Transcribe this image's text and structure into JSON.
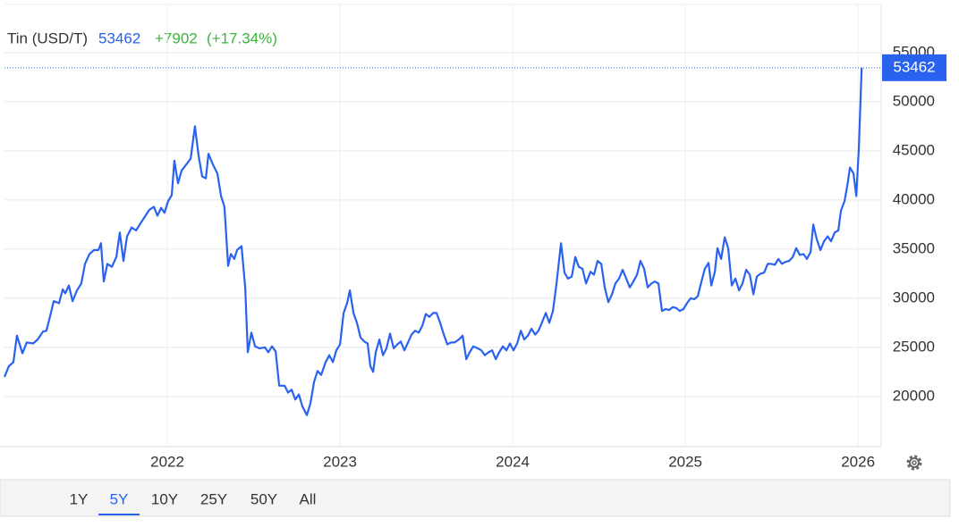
{
  "chart_data": {
    "type": "line",
    "title": "Tin (USD/T)",
    "change": "+7902",
    "change_pct": "(+17.34%)",
    "color": "#2a62f0",
    "x": [
      2021.057,
      2021.083,
      2021.109,
      2021.129,
      2021.161,
      2021.186,
      2021.223,
      2021.249,
      2021.28,
      2021.3,
      2021.326,
      2021.342,
      2021.373,
      2021.394,
      2021.409,
      2021.43,
      2021.451,
      2021.477,
      2021.502,
      2021.523,
      2021.549,
      2021.575,
      2021.601,
      2021.616,
      2021.632,
      2021.653,
      2021.679,
      2021.705,
      2021.725,
      2021.746,
      2021.767,
      2021.793,
      2021.819,
      2021.844,
      2021.87,
      2021.896,
      2021.922,
      2021.943,
      2021.964,
      2021.984,
      2022.005,
      2022.026,
      2022.041,
      2022.062,
      2022.083,
      2022.109,
      2022.135,
      2022.16,
      2022.181,
      2022.202,
      2022.223,
      2022.238,
      2022.264,
      2022.29,
      2022.311,
      2022.331,
      2022.352,
      2022.368,
      2022.388,
      2022.404,
      2022.43,
      2022.451,
      2022.466,
      2022.487,
      2022.508,
      2022.534,
      2022.565,
      2022.585,
      2022.606,
      2022.627,
      2022.648,
      2022.679,
      2022.699,
      2022.72,
      2022.741,
      2022.762,
      2022.782,
      2022.808,
      2022.829,
      2022.85,
      2022.87,
      2022.891,
      2022.917,
      2022.938,
      2022.959,
      2022.979,
      2023.0,
      2023.021,
      2023.041,
      2023.057,
      2023.078,
      2023.098,
      2023.119,
      2023.14,
      2023.16,
      2023.176,
      2023.192,
      2023.207,
      2023.228,
      2023.249,
      2023.269,
      2023.29,
      2023.311,
      2023.332,
      2023.352,
      2023.373,
      2023.394,
      2023.414,
      2023.435,
      2023.456,
      2023.477,
      2023.497,
      2023.518,
      2023.539,
      2023.559,
      2023.58,
      2023.601,
      2023.622,
      2023.642,
      2023.663,
      2023.689,
      2023.71,
      2023.731,
      2023.751,
      2023.772,
      2023.798,
      2023.819,
      2023.839,
      2023.86,
      2023.881,
      2023.902,
      2023.922,
      2023.943,
      2023.964,
      2023.984,
      2024.005,
      2024.026,
      2024.047,
      2024.067,
      2024.088,
      2024.109,
      2024.13,
      2024.15,
      2024.171,
      2024.192,
      2024.212,
      2024.233,
      2024.254,
      2024.28,
      2024.3,
      2024.321,
      2024.342,
      2024.363,
      2024.383,
      2024.404,
      2024.425,
      2024.451,
      2024.471,
      2024.492,
      2024.513,
      2024.533,
      2024.554,
      2024.575,
      2024.595,
      2024.616,
      2024.637,
      2024.658,
      2024.678,
      2024.699,
      2024.72,
      2024.74,
      2024.761,
      2024.782,
      2024.803,
      2024.823,
      2024.844,
      2024.865,
      2024.886,
      2024.906,
      2024.927,
      2024.948,
      2024.968,
      2024.989,
      2025.01,
      2025.031,
      2025.051,
      2025.072,
      2025.093,
      2025.113,
      2025.134,
      2025.15,
      2025.171,
      2025.186,
      2025.207,
      2025.228,
      2025.248,
      2025.269,
      2025.29,
      2025.311,
      2025.331,
      2025.352,
      2025.373,
      2025.394,
      2025.414,
      2025.435,
      2025.456,
      2025.477,
      2025.497,
      2025.518,
      2025.539,
      2025.559,
      2025.58,
      2025.601,
      2025.622,
      2025.642,
      2025.663,
      2025.684,
      2025.704,
      2025.725,
      2025.741,
      2025.761,
      2025.782,
      2025.803,
      2025.824,
      2025.844,
      2025.865,
      2025.886,
      2025.901,
      2025.922,
      2025.938,
      2025.953,
      2025.974,
      2025.99,
      2026.005,
      2026.021
    ],
    "values": [
      22000,
      23100,
      23500,
      26200,
      24400,
      25500,
      25400,
      25800,
      26600,
      26700,
      28500,
      29700,
      29500,
      30900,
      30500,
      31300,
      29700,
      30800,
      31500,
      33500,
      34500,
      34900,
      34900,
      35600,
      31700,
      33500,
      33200,
      34200,
      36700,
      33800,
      36300,
      37200,
      36900,
      37600,
      38300,
      39000,
      39300,
      38400,
      39200,
      38700,
      39900,
      40500,
      44000,
      41700,
      43000,
      43600,
      44200,
      47500,
      44500,
      42400,
      42200,
      44700,
      43600,
      42700,
      40400,
      39300,
      33300,
      34500,
      34000,
      34900,
      35300,
      31100,
      24500,
      26500,
      25100,
      24900,
      25000,
      24500,
      25100,
      24600,
      21100,
      21100,
      20400,
      20700,
      19700,
      20200,
      19000,
      18100,
      19300,
      21500,
      22600,
      22200,
      23500,
      24200,
      23500,
      24700,
      25300,
      28500,
      29500,
      30800,
      28500,
      27500,
      26000,
      25600,
      25400,
      23100,
      22500,
      24500,
      25800,
      24200,
      24900,
      26400,
      24900,
      25300,
      25600,
      24700,
      25500,
      26300,
      26700,
      26500,
      27200,
      28400,
      28100,
      28500,
      28500,
      27500,
      26300,
      25300,
      25500,
      25500,
      25800,
      26200,
      23800,
      24500,
      25100,
      24900,
      24700,
      24200,
      24500,
      24700,
      23800,
      24500,
      25100,
      24700,
      25400,
      24700,
      25400,
      26700,
      25800,
      26200,
      26900,
      26300,
      26700,
      27600,
      28500,
      27500,
      28700,
      31500,
      35600,
      32600,
      32000,
      32200,
      34200,
      33200,
      33000,
      31500,
      32700,
      32400,
      33800,
      33500,
      31100,
      29600,
      30400,
      31500,
      32000,
      32900,
      32000,
      31100,
      31700,
      32400,
      33800,
      33000,
      31100,
      31500,
      31700,
      31500,
      28700,
      28900,
      28800,
      29100,
      29000,
      28700,
      28900,
      29500,
      30000,
      29900,
      30200,
      31700,
      33000,
      33600,
      31300,
      32700,
      35100,
      34000,
      36200,
      35100,
      31300,
      32000,
      30800,
      31500,
      32900,
      32400,
      30400,
      32200,
      32500,
      32600,
      33500,
      33500,
      33400,
      34000,
      33500,
      33700,
      33800,
      34200,
      35100,
      34400,
      34500,
      34000,
      34700,
      37500,
      36000,
      34900,
      35800,
      36300,
      35800,
      36700,
      36900,
      38900,
      39900,
      41500,
      43300,
      42700,
      40400,
      45400,
      53462
    ],
    "xlim": [
      2021.057,
      2026.134
    ],
    "xticks": [
      2022,
      2023,
      2024,
      2025,
      2026
    ],
    "ylim": [
      14900,
      59900
    ],
    "yticks": [
      20000,
      25000,
      30000,
      35000,
      40000,
      45000,
      50000,
      55000
    ],
    "grid": true
  },
  "ranges": [
    "1Y",
    "5Y",
    "10Y",
    "25Y",
    "50Y",
    "All"
  ],
  "selected_range": 1
}
